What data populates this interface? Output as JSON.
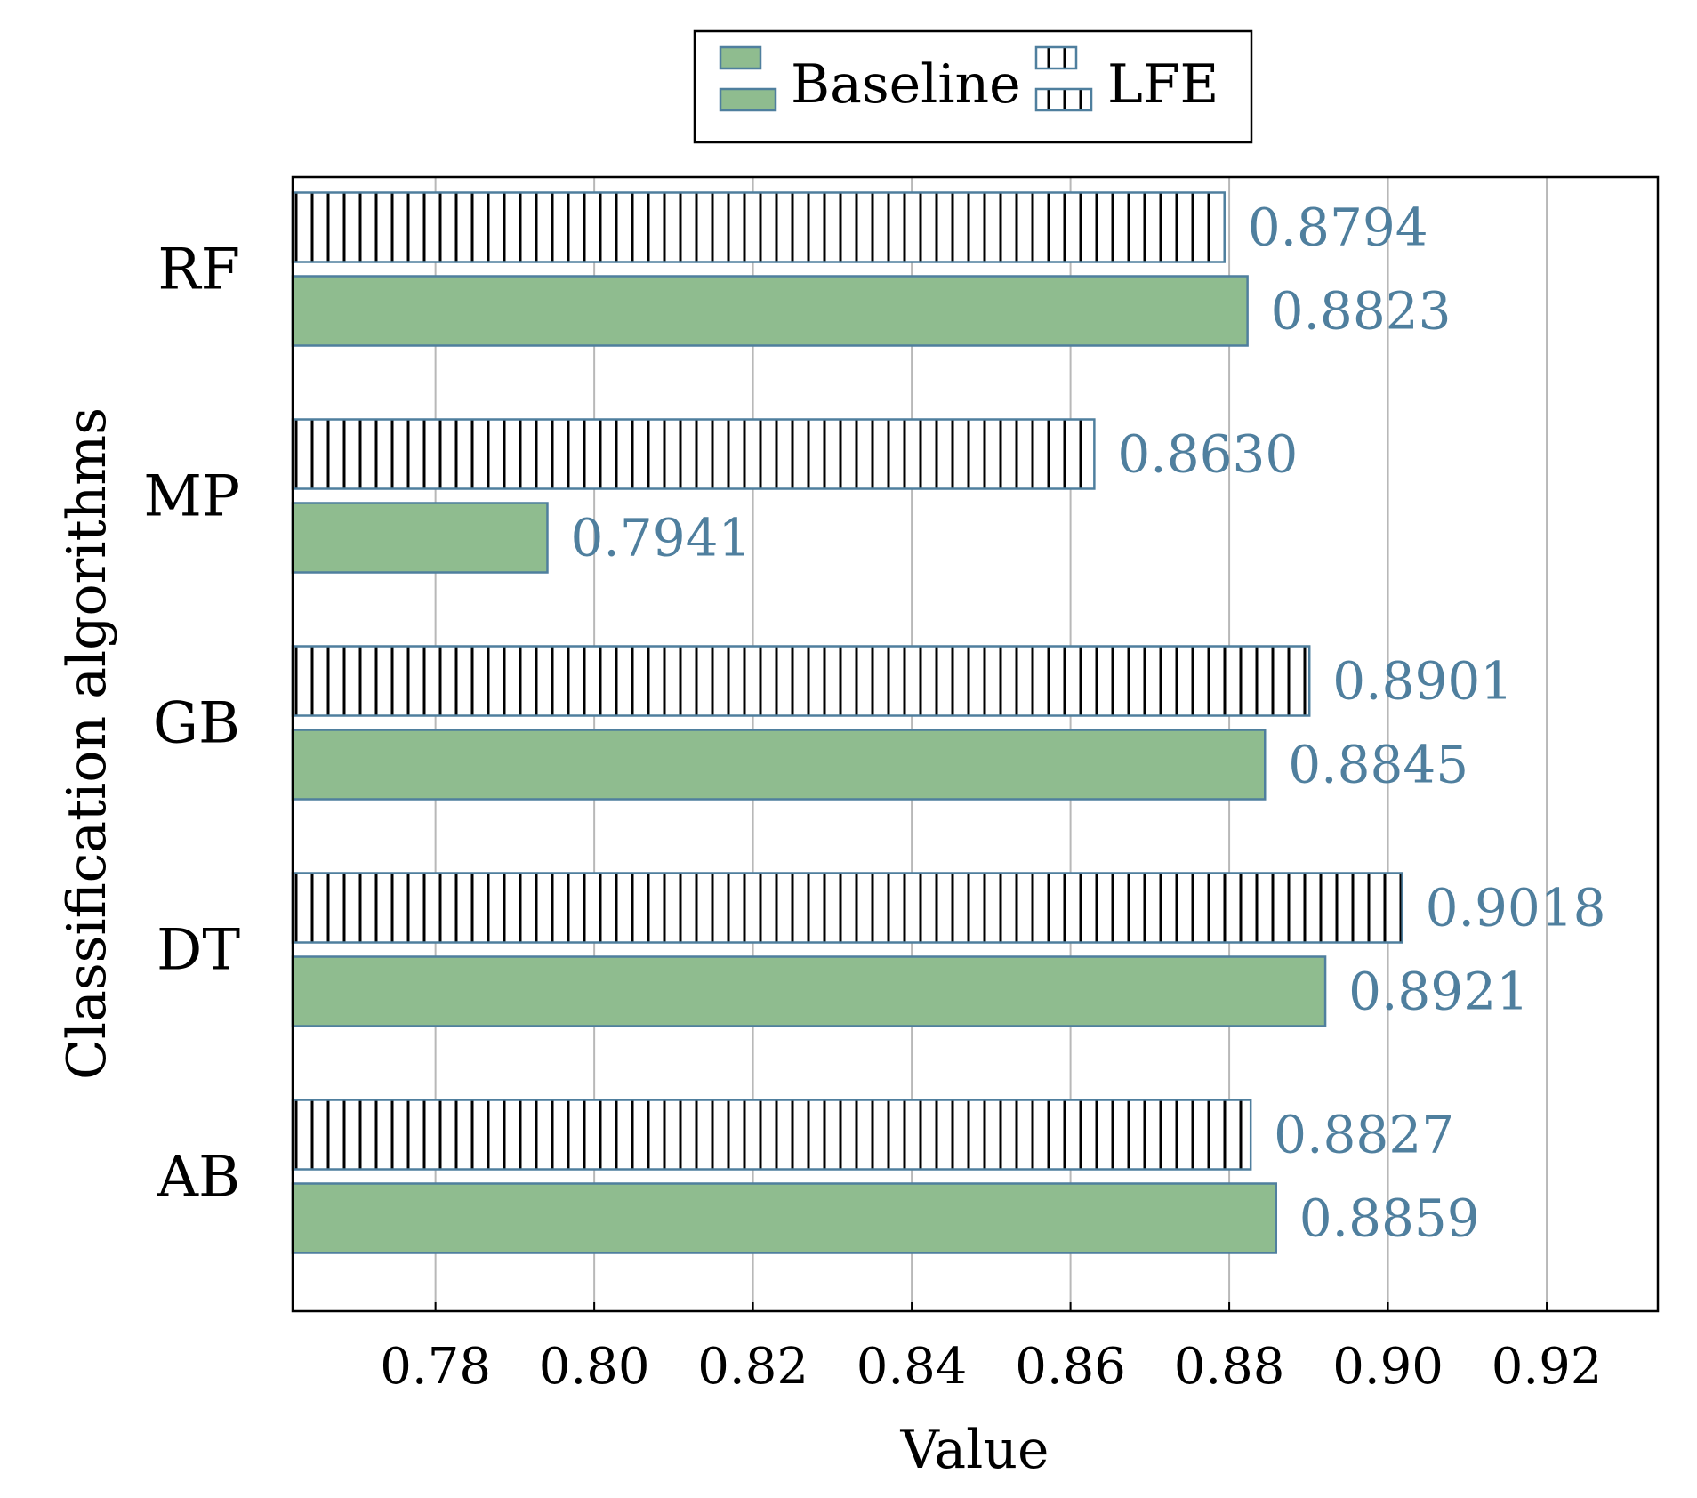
{
  "chart_data": {
    "type": "bar",
    "orientation": "horizontal",
    "title": "",
    "xlabel": "Value",
    "ylabel": "Classification algorithms",
    "categories": [
      "RF",
      "MP",
      "GB",
      "DT",
      "AB"
    ],
    "series": [
      {
        "name": "LFE",
        "values": [
          0.8794,
          0.863,
          0.8901,
          0.9018,
          0.8827
        ],
        "value_labels": [
          "0.8794",
          "0.8630",
          "0.8901",
          "0.9018",
          "0.8827"
        ],
        "style": "vertical-hatch",
        "fill": "#ffffff",
        "hatch_color": "#000000",
        "edge": "#4f7f9e"
      },
      {
        "name": "Baseline",
        "values": [
          0.8823,
          0.7941,
          0.8845,
          0.8921,
          0.8859
        ],
        "value_labels": [
          "0.8823",
          "0.7941",
          "0.8845",
          "0.8921",
          "0.8859"
        ],
        "style": "solid",
        "fill": "#8fbc8f",
        "edge": "#4f7f9e"
      }
    ],
    "xlim": [
      0.762,
      0.934
    ],
    "xticks": [
      0.78,
      0.8,
      0.82,
      0.84,
      0.86,
      0.88,
      0.9,
      0.92
    ],
    "xtick_labels": [
      "0.78",
      "0.80",
      "0.82",
      "0.84",
      "0.86",
      "0.88",
      "0.90",
      "0.92"
    ],
    "grid": "vertical",
    "legend": {
      "placement": "top-center",
      "entries": [
        "Baseline",
        "LFE"
      ]
    },
    "label_color": "#4f7f9e"
  }
}
